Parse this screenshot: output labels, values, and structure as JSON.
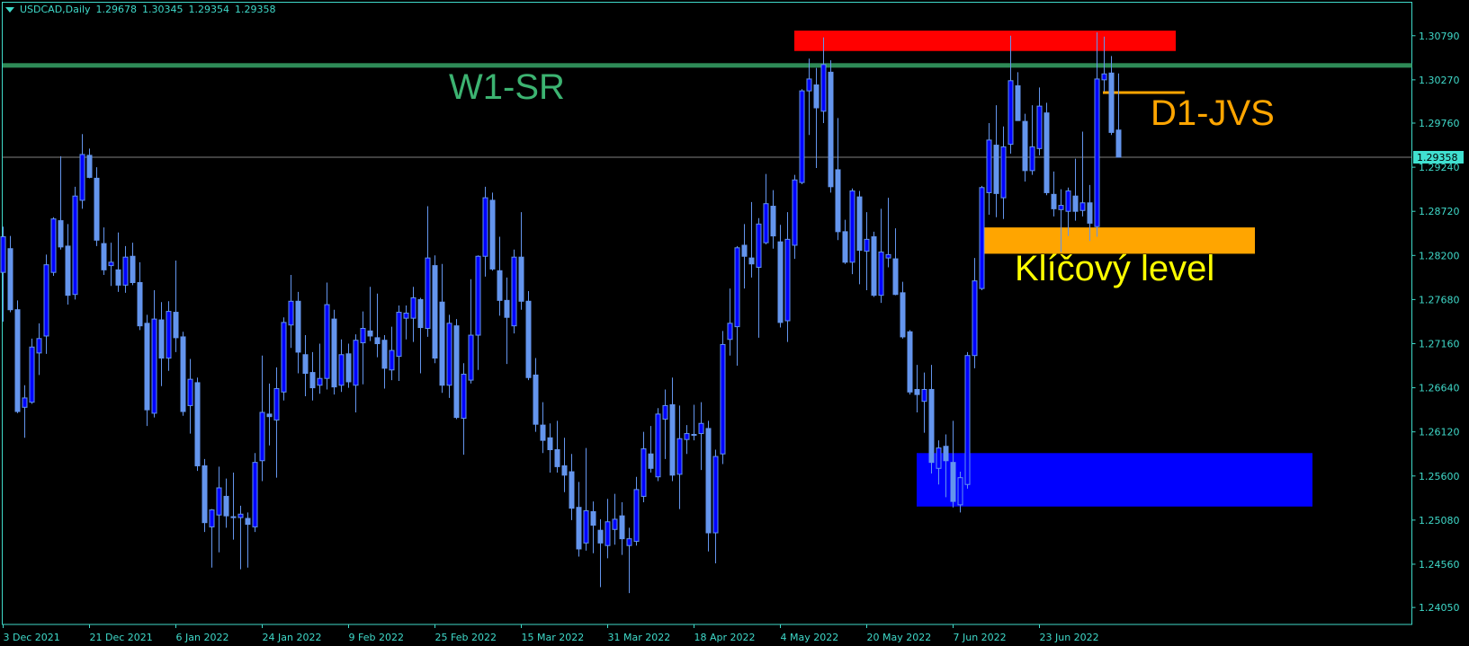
{
  "header": {
    "symbol_timeframe": "USDCAD,Daily",
    "ohlc": [
      "1.29678",
      "1.30345",
      "1.29354",
      "1.29358"
    ]
  },
  "price_label": "1.29358",
  "annotations": {
    "w1_sr": "W1-SR",
    "d1_jvs": "D1-JVS",
    "key_level": "Klíčový level"
  },
  "colors": {
    "background": "#000000",
    "axis": "#3fd9c9",
    "bull_body": "#0000ff",
    "bear_body": "#6495ed",
    "wick": "#6495ed",
    "w1_sr_line": "#2e8b57",
    "w1_sr_text": "#3cb371",
    "resistance_zone": "#ff0000",
    "key_level_zone": "#ffa500",
    "d1_jvs": "#ffa500",
    "key_level_text": "#ffff00",
    "support_zone": "#0000ff",
    "price_line": "#808080",
    "price_label_bg": "#40e0d0"
  },
  "chart_data": {
    "type": "candlestick",
    "symbol": "USDCAD",
    "timeframe": "Daily",
    "ylim": [
      1.2385,
      1.3119
    ],
    "grid": false,
    "y_ticks": [
      "1.30790",
      "1.30270",
      "1.29760",
      "1.29240",
      "1.28720",
      "1.28200",
      "1.27680",
      "1.27160",
      "1.26640",
      "1.26120",
      "1.25600",
      "1.25080",
      "1.24560",
      "1.24050"
    ],
    "x_tick_labels": [
      "3 Dec 2021",
      "21 Dec 2021",
      "6 Jan 2022",
      "24 Jan 2022",
      "9 Feb 2022",
      "25 Feb 2022",
      "15 Mar 2022",
      "31 Mar 2022",
      "18 Apr 2022",
      "4 May 2022",
      "20 May 2022",
      "7 Jun 2022",
      "23 Jun 2022"
    ],
    "x_tick_every_bars": 12,
    "candle_fields": [
      "open",
      "high",
      "low",
      "close"
    ],
    "candles": [
      [
        1.28,
        1.2854,
        1.2742,
        1.2842
      ],
      [
        1.2828,
        1.2843,
        1.2753,
        1.2756
      ],
      [
        1.2756,
        1.2767,
        1.2634,
        1.2636
      ],
      [
        1.2641,
        1.2667,
        1.2605,
        1.2652
      ],
      [
        1.2647,
        1.2722,
        1.2645,
        1.2712
      ],
      [
        1.2705,
        1.274,
        1.2679,
        1.2722
      ],
      [
        1.2725,
        1.2821,
        1.2704,
        1.2809
      ],
      [
        1.28,
        1.2865,
        1.2796,
        1.2863
      ],
      [
        1.2861,
        1.2937,
        1.2827,
        1.283
      ],
      [
        1.2831,
        1.2857,
        1.2762,
        1.2773
      ],
      [
        1.2774,
        1.2901,
        1.2768,
        1.289
      ],
      [
        1.2885,
        1.2963,
        1.2875,
        1.2939
      ],
      [
        1.2938,
        1.2946,
        1.2911,
        1.2912
      ],
      [
        1.2911,
        1.2924,
        1.2831,
        1.2838
      ],
      [
        1.2834,
        1.2853,
        1.2797,
        1.2803
      ],
      [
        1.2808,
        1.2835,
        1.2784,
        1.2812
      ],
      [
        1.2803,
        1.2847,
        1.2777,
        1.2785
      ],
      [
        1.2785,
        1.2831,
        1.2776,
        1.2818
      ],
      [
        1.2819,
        1.2835,
        1.2785,
        1.2788
      ],
      [
        1.2788,
        1.2812,
        1.2732,
        1.2737
      ],
      [
        1.274,
        1.275,
        1.2619,
        1.2638
      ],
      [
        1.2634,
        1.2779,
        1.2629,
        1.2745
      ],
      [
        1.2744,
        1.2765,
        1.2666,
        1.2699
      ],
      [
        1.2699,
        1.2766,
        1.2684,
        1.2754
      ],
      [
        1.2753,
        1.2814,
        1.2706,
        1.2723
      ],
      [
        1.2724,
        1.273,
        1.2631,
        1.2636
      ],
      [
        1.2643,
        1.2698,
        1.261,
        1.2674
      ],
      [
        1.267,
        1.2676,
        1.2566,
        1.2572
      ],
      [
        1.2572,
        1.258,
        1.2494,
        1.2505
      ],
      [
        1.25,
        1.2521,
        1.2452,
        1.252
      ],
      [
        1.2514,
        1.2571,
        1.247,
        1.2546
      ],
      [
        1.2536,
        1.2557,
        1.2499,
        1.2513
      ],
      [
        1.2512,
        1.2564,
        1.2485,
        1.2511
      ],
      [
        1.2511,
        1.2525,
        1.245,
        1.2515
      ],
      [
        1.251,
        1.2517,
        1.2452,
        1.2503
      ],
      [
        1.25,
        1.2587,
        1.2494,
        1.2576
      ],
      [
        1.2578,
        1.2702,
        1.2554,
        1.2635
      ],
      [
        1.2633,
        1.2669,
        1.2596,
        1.263
      ],
      [
        1.2626,
        1.2688,
        1.2558,
        1.2663
      ],
      [
        1.2659,
        1.2747,
        1.2649,
        1.2741
      ],
      [
        1.2738,
        1.2797,
        1.2711,
        1.2766
      ],
      [
        1.2766,
        1.2777,
        1.2681,
        1.2706
      ],
      [
        1.2703,
        1.2726,
        1.2654,
        1.2681
      ],
      [
        1.2682,
        1.2706,
        1.2649,
        1.2664
      ],
      [
        1.2667,
        1.2716,
        1.2657,
        1.2675
      ],
      [
        1.2675,
        1.2788,
        1.2662,
        1.2762
      ],
      [
        1.2745,
        1.2756,
        1.2656,
        1.2665
      ],
      [
        1.2667,
        1.2721,
        1.2659,
        1.2703
      ],
      [
        1.2704,
        1.2716,
        1.2664,
        1.2671
      ],
      [
        1.2667,
        1.2727,
        1.2635,
        1.272
      ],
      [
        1.2717,
        1.2754,
        1.2668,
        1.2734
      ],
      [
        1.2731,
        1.2783,
        1.2719,
        1.2725
      ],
      [
        1.2723,
        1.2775,
        1.27,
        1.2716
      ],
      [
        1.272,
        1.2726,
        1.2663,
        1.2687
      ],
      [
        1.2685,
        1.2736,
        1.2673,
        1.2708
      ],
      [
        1.2701,
        1.2761,
        1.2672,
        1.2753
      ],
      [
        1.2746,
        1.2761,
        1.2721,
        1.2752
      ],
      [
        1.2746,
        1.2783,
        1.2718,
        1.277
      ],
      [
        1.2768,
        1.277,
        1.2681,
        1.2735
      ],
      [
        1.2734,
        1.2878,
        1.2724,
        1.2817
      ],
      [
        1.2808,
        1.282,
        1.2693,
        1.2699
      ],
      [
        1.2765,
        1.281,
        1.2658,
        1.2667
      ],
      [
        1.2667,
        1.275,
        1.2652,
        1.274
      ],
      [
        1.2737,
        1.2745,
        1.2627,
        1.2629
      ],
      [
        1.2628,
        1.2693,
        1.2585,
        1.268
      ],
      [
        1.2673,
        1.2792,
        1.2669,
        1.2726
      ],
      [
        1.2726,
        1.282,
        1.2685,
        1.2819
      ],
      [
        1.2819,
        1.2901,
        1.2795,
        1.2888
      ],
      [
        1.2885,
        1.2894,
        1.2802,
        1.2804
      ],
      [
        1.2802,
        1.2842,
        1.2749,
        1.2767
      ],
      [
        1.2767,
        1.2794,
        1.2692,
        1.2747
      ],
      [
        1.2737,
        1.2827,
        1.2728,
        1.2818
      ],
      [
        1.2818,
        1.2871,
        1.2756,
        1.2766
      ],
      [
        1.2766,
        1.2778,
        1.2673,
        1.2676
      ],
      [
        1.2679,
        1.2699,
        1.2612,
        1.2621
      ],
      [
        1.262,
        1.2647,
        1.2587,
        1.2602
      ],
      [
        1.2605,
        1.2622,
        1.2564,
        1.2591
      ],
      [
        1.2591,
        1.2625,
        1.2564,
        1.2571
      ],
      [
        1.2572,
        1.2605,
        1.2541,
        1.2561
      ],
      [
        1.2565,
        1.2586,
        1.2508,
        1.2522
      ],
      [
        1.2523,
        1.2553,
        1.2465,
        1.2474
      ],
      [
        1.2481,
        1.2593,
        1.2472,
        1.2519
      ],
      [
        1.2518,
        1.253,
        1.2469,
        1.2502
      ],
      [
        1.2496,
        1.2509,
        1.2429,
        1.2481
      ],
      [
        1.2478,
        1.2533,
        1.2463,
        1.2506
      ],
      [
        1.2497,
        1.2539,
        1.2479,
        1.2509
      ],
      [
        1.2513,
        1.2529,
        1.2467,
        1.2486
      ],
      [
        1.2478,
        1.2499,
        1.2422,
        1.2486
      ],
      [
        1.2483,
        1.2559,
        1.2478,
        1.2544
      ],
      [
        1.2536,
        1.2612,
        1.2529,
        1.2592
      ],
      [
        1.2586,
        1.2619,
        1.2564,
        1.2569
      ],
      [
        1.2559,
        1.264,
        1.2554,
        1.2633
      ],
      [
        1.2627,
        1.2662,
        1.258,
        1.2643
      ],
      [
        1.2644,
        1.2676,
        1.2554,
        1.2561
      ],
      [
        1.2562,
        1.2643,
        1.2521,
        1.2604
      ],
      [
        1.2603,
        1.262,
        1.2586,
        1.261
      ],
      [
        1.2609,
        1.2644,
        1.2602,
        1.2609
      ],
      [
        1.261,
        1.2647,
        1.2567,
        1.2622
      ],
      [
        1.2616,
        1.2625,
        1.2471,
        1.2493
      ],
      [
        1.2493,
        1.2591,
        1.2457,
        1.2583
      ],
      [
        1.2586,
        1.2731,
        1.2574,
        1.2715
      ],
      [
        1.2721,
        1.2781,
        1.2702,
        1.274
      ],
      [
        1.2736,
        1.2831,
        1.269,
        1.2829
      ],
      [
        1.2832,
        1.2857,
        1.2781,
        1.2819
      ],
      [
        1.2817,
        1.2883,
        1.2794,
        1.281
      ],
      [
        1.2806,
        1.2864,
        1.2723,
        1.2857
      ],
      [
        1.2835,
        1.2916,
        1.2833,
        1.2881
      ],
      [
        1.2878,
        1.2897,
        1.2828,
        1.2843
      ],
      [
        1.2836,
        1.2856,
        1.2735,
        1.2741
      ],
      [
        1.2743,
        1.2871,
        1.2718,
        1.2839
      ],
      [
        1.2832,
        1.2915,
        1.2816,
        1.2909
      ],
      [
        1.2906,
        1.3016,
        1.2904,
        1.3014
      ],
      [
        1.3014,
        1.3052,
        1.2962,
        1.3028
      ],
      [
        1.3021,
        1.3041,
        1.2923,
        1.2994
      ],
      [
        1.299,
        1.3077,
        1.2976,
        1.3045
      ],
      [
        1.3036,
        1.305,
        1.2894,
        1.2901
      ],
      [
        1.2921,
        1.2982,
        1.2838,
        1.2848
      ],
      [
        1.2848,
        1.2862,
        1.281,
        1.2812
      ],
      [
        1.2812,
        1.2899,
        1.2798,
        1.2896
      ],
      [
        1.2889,
        1.2896,
        1.2786,
        1.2826
      ],
      [
        1.2825,
        1.2871,
        1.2779,
        1.2839
      ],
      [
        1.2842,
        1.2848,
        1.2771,
        1.2773
      ],
      [
        1.2773,
        1.2875,
        1.2764,
        1.2824
      ],
      [
        1.2817,
        1.2888,
        1.2806,
        1.2821
      ],
      [
        1.2816,
        1.2852,
        1.2773,
        1.2774
      ],
      [
        1.2776,
        1.2789,
        1.2722,
        1.2724
      ],
      [
        1.273,
        1.2732,
        1.2656,
        1.2659
      ],
      [
        1.2662,
        1.2691,
        1.2635,
        1.2656
      ],
      [
        1.2648,
        1.2682,
        1.2611,
        1.2662
      ],
      [
        1.2662,
        1.2691,
        1.2563,
        1.2576
      ],
      [
        1.2569,
        1.2602,
        1.255,
        1.2593
      ],
      [
        1.2595,
        1.2609,
        1.2535,
        1.2578
      ],
      [
        1.2576,
        1.2625,
        1.2523,
        1.253
      ],
      [
        1.2526,
        1.2565,
        1.2517,
        1.2558
      ],
      [
        1.255,
        1.2706,
        1.2545,
        1.2702
      ],
      [
        1.2702,
        1.2817,
        1.2687,
        1.279
      ],
      [
        1.2781,
        1.2902,
        1.2779,
        1.29
      ],
      [
        1.2894,
        1.2976,
        1.2868,
        1.2956
      ],
      [
        1.295,
        1.2997,
        1.2865,
        1.2893
      ],
      [
        1.2888,
        1.2972,
        1.2863,
        1.2948
      ],
      [
        1.2951,
        1.3079,
        1.294,
        1.3026
      ],
      [
        1.302,
        1.3036,
        1.2979,
        1.2979
      ],
      [
        1.2978,
        1.2987,
        1.2907,
        1.292
      ],
      [
        1.292,
        1.2997,
        1.2915,
        1.2948
      ],
      [
        1.2946,
        1.3018,
        1.2938,
        1.2996
      ],
      [
        1.2988,
        1.3,
        1.2891,
        1.2894
      ],
      [
        1.2892,
        1.2919,
        1.2866,
        1.2875
      ],
      [
        1.2874,
        1.2898,
        1.2824,
        1.2879
      ],
      [
        1.2872,
        1.29,
        1.2843,
        1.2896
      ],
      [
        1.289,
        1.2934,
        1.2861,
        1.2872
      ],
      [
        1.2873,
        1.2966,
        1.2866,
        1.2882
      ],
      [
        1.2882,
        1.2903,
        1.2837,
        1.2858
      ],
      [
        1.2854,
        1.3083,
        1.2842,
        1.3028
      ],
      [
        1.3027,
        1.3078,
        1.3013,
        1.3034
      ],
      [
        1.3035,
        1.3055,
        1.2962,
        1.2965
      ],
      [
        1.29678,
        1.30345,
        1.29354,
        1.29358
      ]
    ],
    "current_price": 1.29358,
    "levels": [
      {
        "label": "W1-SR",
        "price": 1.3044
      },
      {
        "label": "D1-JVS",
        "price": 1.3012
      }
    ],
    "zones": [
      {
        "price_from": 1.3061,
        "price_to": 1.3085
      },
      {
        "label": "Klíčový level",
        "price_from": 1.2822,
        "price_to": 1.2853
      },
      {
        "price_from": 1.2524,
        "price_to": 1.2587
      }
    ]
  }
}
